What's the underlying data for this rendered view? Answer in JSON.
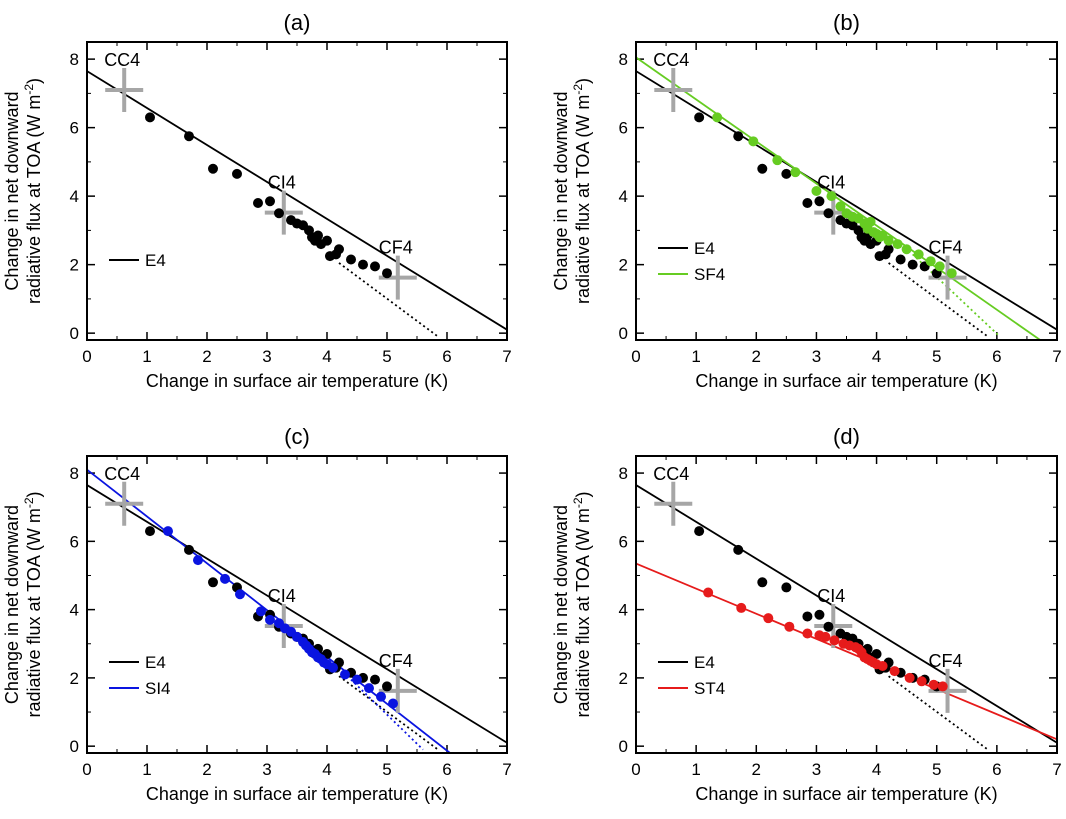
{
  "figure": {
    "xlabel": "Change in surface air temperature (K)",
    "ylabel_line1": "Change in net downward",
    "ylabel_line2": "radiative flux at TOA (W m",
    "ylabel_sup": "-2",
    "ylabel_close": ")"
  },
  "colors": {
    "E4": "#000000",
    "SF4": "#66cc22",
    "SI4": "#0a14e0",
    "ST4": "#e61b1b",
    "marker": "#a6a6a6"
  },
  "chart_data": [
    {
      "type": "scatter",
      "title": "(a)",
      "xlabel": "Change in surface air temperature (K)",
      "ylabel": "Change in net downward radiative flux at TOA (W m-2)",
      "xlim": [
        0,
        7
      ],
      "ylim": [
        -0.2,
        8.5
      ],
      "xticks": [
        0,
        1,
        2,
        3,
        4,
        5,
        6,
        7
      ],
      "yticks": [
        0,
        2,
        4,
        6,
        8
      ],
      "legend_position": "left",
      "markers": [
        {
          "label": "CC4",
          "x": 0.62,
          "y": 7.1
        },
        {
          "label": "CI4",
          "x": 3.28,
          "y": 3.52
        },
        {
          "label": "CF4",
          "x": 5.18,
          "y": 1.62
        }
      ],
      "series": [
        {
          "name": "E4",
          "color": "#000000",
          "points": [
            [
              1.05,
              6.3
            ],
            [
              1.7,
              5.75
            ],
            [
              2.1,
              4.8
            ],
            [
              2.5,
              4.65
            ],
            [
              2.85,
              3.8
            ],
            [
              3.05,
              3.85
            ],
            [
              3.2,
              3.5
            ],
            [
              3.4,
              3.3
            ],
            [
              3.5,
              3.2
            ],
            [
              3.6,
              3.15
            ],
            [
              3.7,
              3.0
            ],
            [
              3.75,
              2.8
            ],
            [
              3.8,
              2.7
            ],
            [
              3.85,
              2.85
            ],
            [
              3.9,
              2.6
            ],
            [
              4.0,
              2.7
            ],
            [
              4.05,
              2.25
            ],
            [
              4.15,
              2.3
            ],
            [
              4.2,
              2.45
            ],
            [
              4.4,
              2.15
            ],
            [
              4.6,
              2.0
            ],
            [
              4.8,
              1.95
            ],
            [
              5.0,
              1.75
            ]
          ],
          "fit": {
            "x": [
              0,
              7
            ],
            "y": [
              7.65,
              0.1
            ]
          },
          "extrap": {
            "x": [
              4.2,
              5.85
            ],
            "y": [
              2.05,
              -0.1
            ]
          }
        }
      ]
    },
    {
      "type": "scatter",
      "title": "(b)",
      "xlabel": "Change in surface air temperature (K)",
      "ylabel": "Change in net downward radiative flux at TOA (W m-2)",
      "xlim": [
        0,
        7
      ],
      "ylim": [
        -0.2,
        8.5
      ],
      "xticks": [
        0,
        1,
        2,
        3,
        4,
        5,
        6,
        7
      ],
      "yticks": [
        0,
        2,
        4,
        6,
        8
      ],
      "legend_position": "left",
      "markers": [
        {
          "label": "CC4",
          "x": 0.62,
          "y": 7.1
        },
        {
          "label": "CI4",
          "x": 3.28,
          "y": 3.52
        },
        {
          "label": "CF4",
          "x": 5.18,
          "y": 1.62
        }
      ],
      "series": [
        {
          "name": "E4",
          "color": "#000000",
          "points": [
            [
              1.05,
              6.3
            ],
            [
              1.7,
              5.75
            ],
            [
              2.1,
              4.8
            ],
            [
              2.5,
              4.65
            ],
            [
              2.85,
              3.8
            ],
            [
              3.05,
              3.85
            ],
            [
              3.2,
              3.5
            ],
            [
              3.4,
              3.3
            ],
            [
              3.5,
              3.2
            ],
            [
              3.6,
              3.15
            ],
            [
              3.7,
              3.0
            ],
            [
              3.75,
              2.8
            ],
            [
              3.8,
              2.7
            ],
            [
              3.85,
              2.85
            ],
            [
              3.9,
              2.6
            ],
            [
              4.0,
              2.7
            ],
            [
              4.05,
              2.25
            ],
            [
              4.15,
              2.3
            ],
            [
              4.2,
              2.45
            ],
            [
              4.4,
              2.15
            ],
            [
              4.6,
              2.0
            ],
            [
              4.8,
              1.95
            ],
            [
              5.0,
              1.75
            ]
          ],
          "fit": {
            "x": [
              0,
              7
            ],
            "y": [
              7.65,
              0.1
            ]
          },
          "extrap": {
            "x": [
              4.2,
              5.85
            ],
            "y": [
              2.05,
              -0.1
            ]
          }
        },
        {
          "name": "SF4",
          "color": "#66cc22",
          "points": [
            [
              1.35,
              6.3
            ],
            [
              1.95,
              5.6
            ],
            [
              2.35,
              5.05
            ],
            [
              2.65,
              4.7
            ],
            [
              3.0,
              4.15
            ],
            [
              3.25,
              4.0
            ],
            [
              3.4,
              3.7
            ],
            [
              3.5,
              3.5
            ],
            [
              3.6,
              3.4
            ],
            [
              3.7,
              3.35
            ],
            [
              3.8,
              3.2
            ],
            [
              3.85,
              3.05
            ],
            [
              3.9,
              3.25
            ],
            [
              3.95,
              2.95
            ],
            [
              4.0,
              2.9
            ],
            [
              4.05,
              2.8
            ],
            [
              4.1,
              2.85
            ],
            [
              4.2,
              2.7
            ],
            [
              4.35,
              2.6
            ],
            [
              4.5,
              2.45
            ],
            [
              4.7,
              2.3
            ],
            [
              4.9,
              2.1
            ],
            [
              5.05,
              1.95
            ],
            [
              5.25,
              1.75
            ]
          ],
          "fit": {
            "x": [
              0,
              6.72
            ],
            "y": [
              8.05,
              -0.2
            ]
          },
          "extrap": {
            "x": [
              4.6,
              6.05
            ],
            "y": [
              2.3,
              -0.1
            ]
          }
        }
      ]
    },
    {
      "type": "scatter",
      "title": "(c)",
      "xlabel": "Change in surface air temperature (K)",
      "ylabel": "Change in net downward radiative flux at TOA (W m-2)",
      "xlim": [
        0,
        7
      ],
      "ylim": [
        -0.2,
        8.5
      ],
      "xticks": [
        0,
        1,
        2,
        3,
        4,
        5,
        6,
        7
      ],
      "yticks": [
        0,
        2,
        4,
        6,
        8
      ],
      "legend_position": "left",
      "markers": [
        {
          "label": "CC4",
          "x": 0.62,
          "y": 7.1
        },
        {
          "label": "CI4",
          "x": 3.28,
          "y": 3.52
        },
        {
          "label": "CF4",
          "x": 5.18,
          "y": 1.62
        }
      ],
      "series": [
        {
          "name": "E4",
          "color": "#000000",
          "points": [
            [
              1.05,
              6.3
            ],
            [
              1.7,
              5.75
            ],
            [
              2.1,
              4.8
            ],
            [
              2.5,
              4.65
            ],
            [
              2.85,
              3.8
            ],
            [
              3.05,
              3.85
            ],
            [
              3.2,
              3.5
            ],
            [
              3.4,
              3.3
            ],
            [
              3.5,
              3.2
            ],
            [
              3.6,
              3.15
            ],
            [
              3.7,
              3.0
            ],
            [
              3.75,
              2.8
            ],
            [
              3.8,
              2.7
            ],
            [
              3.85,
              2.85
            ],
            [
              3.9,
              2.6
            ],
            [
              4.0,
              2.7
            ],
            [
              4.05,
              2.25
            ],
            [
              4.15,
              2.3
            ],
            [
              4.2,
              2.45
            ],
            [
              4.4,
              2.15
            ],
            [
              4.6,
              2.0
            ],
            [
              4.8,
              1.95
            ],
            [
              5.0,
              1.75
            ]
          ],
          "fit": {
            "x": [
              0,
              7
            ],
            "y": [
              7.65,
              0.1
            ]
          },
          "extrap": {
            "x": [
              4.2,
              5.85
            ],
            "y": [
              2.05,
              -0.1
            ]
          }
        },
        {
          "name": "SI4",
          "color": "#0a14e0",
          "points": [
            [
              1.35,
              6.3
            ],
            [
              1.85,
              5.45
            ],
            [
              2.3,
              4.9
            ],
            [
              2.55,
              4.45
            ],
            [
              2.9,
              3.95
            ],
            [
              3.05,
              3.7
            ],
            [
              3.2,
              3.6
            ],
            [
              3.3,
              3.45
            ],
            [
              3.4,
              3.35
            ],
            [
              3.5,
              3.2
            ],
            [
              3.6,
              3.05
            ],
            [
              3.65,
              2.95
            ],
            [
              3.7,
              2.85
            ],
            [
              3.75,
              2.75
            ],
            [
              3.8,
              2.7
            ],
            [
              3.85,
              2.6
            ],
            [
              3.9,
              2.55
            ],
            [
              3.95,
              2.45
            ],
            [
              4.0,
              2.4
            ],
            [
              4.1,
              2.3
            ],
            [
              4.3,
              2.1
            ],
            [
              4.5,
              1.95
            ],
            [
              4.7,
              1.7
            ],
            [
              4.9,
              1.45
            ],
            [
              5.1,
              1.25
            ]
          ],
          "fit": {
            "x": [
              0,
              6.05
            ],
            "y": [
              8.1,
              -0.2
            ]
          },
          "extrap": {
            "x": [
              4.4,
              5.6
            ],
            "y": [
              1.95,
              -0.1
            ]
          }
        }
      ]
    },
    {
      "type": "scatter",
      "title": "(d)",
      "xlabel": "Change in surface air temperature (K)",
      "ylabel": "Change in net downward radiative flux at TOA (W m-2)",
      "xlim": [
        0,
        7
      ],
      "ylim": [
        -0.2,
        8.5
      ],
      "xticks": [
        0,
        1,
        2,
        3,
        4,
        5,
        6,
        7
      ],
      "yticks": [
        0,
        2,
        4,
        6,
        8
      ],
      "legend_position": "left",
      "markers": [
        {
          "label": "CC4",
          "x": 0.62,
          "y": 7.1
        },
        {
          "label": "CI4",
          "x": 3.28,
          "y": 3.52
        },
        {
          "label": "CF4",
          "x": 5.18,
          "y": 1.62
        }
      ],
      "series": [
        {
          "name": "E4",
          "color": "#000000",
          "points": [
            [
              1.05,
              6.3
            ],
            [
              1.7,
              5.75
            ],
            [
              2.1,
              4.8
            ],
            [
              2.5,
              4.65
            ],
            [
              2.85,
              3.8
            ],
            [
              3.05,
              3.85
            ],
            [
              3.2,
              3.5
            ],
            [
              3.4,
              3.3
            ],
            [
              3.5,
              3.2
            ],
            [
              3.6,
              3.15
            ],
            [
              3.7,
              3.0
            ],
            [
              3.75,
              2.8
            ],
            [
              3.8,
              2.7
            ],
            [
              3.85,
              2.85
            ],
            [
              3.9,
              2.6
            ],
            [
              4.0,
              2.7
            ],
            [
              4.05,
              2.25
            ],
            [
              4.15,
              2.3
            ],
            [
              4.2,
              2.45
            ],
            [
              4.4,
              2.15
            ],
            [
              4.6,
              2.0
            ],
            [
              4.8,
              1.95
            ],
            [
              5.0,
              1.75
            ]
          ],
          "fit": {
            "x": [
              0,
              7
            ],
            "y": [
              7.65,
              0.1
            ]
          },
          "extrap": {
            "x": [
              4.2,
              5.85
            ],
            "y": [
              2.05,
              -0.1
            ]
          }
        },
        {
          "name": "ST4",
          "color": "#e61b1b",
          "points": [
            [
              1.2,
              4.5
            ],
            [
              1.75,
              4.05
            ],
            [
              2.2,
              3.75
            ],
            [
              2.55,
              3.5
            ],
            [
              2.85,
              3.3
            ],
            [
              3.05,
              3.25
            ],
            [
              3.15,
              3.2
            ],
            [
              3.3,
              3.1
            ],
            [
              3.45,
              3.0
            ],
            [
              3.55,
              2.95
            ],
            [
              3.65,
              2.9
            ],
            [
              3.7,
              2.85
            ],
            [
              3.75,
              2.75
            ],
            [
              3.8,
              2.6
            ],
            [
              3.85,
              2.55
            ],
            [
              3.9,
              2.5
            ],
            [
              3.95,
              2.45
            ],
            [
              4.0,
              2.4
            ],
            [
              4.1,
              2.35
            ],
            [
              4.3,
              2.2
            ],
            [
              4.55,
              2.0
            ],
            [
              4.75,
              1.9
            ],
            [
              4.95,
              1.8
            ],
            [
              5.1,
              1.75
            ]
          ],
          "fit": {
            "x": [
              0,
              7
            ],
            "y": [
              5.35,
              0.2
            ]
          }
        }
      ]
    }
  ]
}
